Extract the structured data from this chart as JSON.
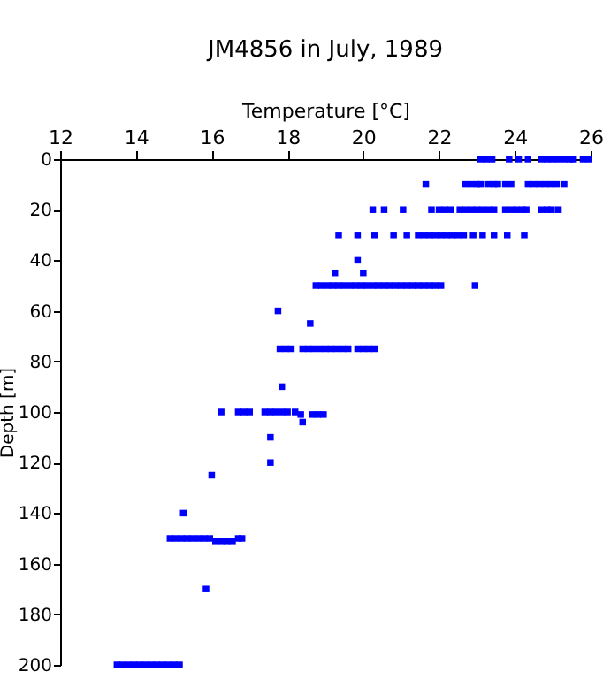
{
  "chart_data": {
    "type": "scatter",
    "title": "JM4856 in July, 1989",
    "xlabel": "Temperature [°C]",
    "ylabel": "Depth [m]",
    "x": [
      23.1,
      23.25,
      23.4,
      23.85,
      24.1,
      24.35,
      24.7,
      24.85,
      25.0,
      25.15,
      25.3,
      25.45,
      25.55,
      25.8,
      25.95,
      21.65,
      22.7,
      22.85,
      23.0,
      23.1,
      23.3,
      23.45,
      23.55,
      23.75,
      23.9,
      24.35,
      24.5,
      24.65,
      24.8,
      24.95,
      25.1,
      25.3,
      20.25,
      20.55,
      21.05,
      21.8,
      22.0,
      22.15,
      22.3,
      22.55,
      22.7,
      22.85,
      23.0,
      23.15,
      23.3,
      23.45,
      23.75,
      23.9,
      24.05,
      24.2,
      24.3,
      24.7,
      24.85,
      24.97,
      25.15,
      19.35,
      19.85,
      20.3,
      20.8,
      21.15,
      21.45,
      21.6,
      21.75,
      21.9,
      22.05,
      22.2,
      22.35,
      22.5,
      22.65,
      22.9,
      23.15,
      23.45,
      23.8,
      24.25,
      19.85,
      19.25,
      20.0,
      18.75,
      18.9,
      19.05,
      19.2,
      19.35,
      19.5,
      19.65,
      19.8,
      19.95,
      20.1,
      20.25,
      20.4,
      20.55,
      20.7,
      20.85,
      21.0,
      21.15,
      21.3,
      21.45,
      21.6,
      21.75,
      21.9,
      22.05,
      22.95,
      17.75,
      18.6,
      17.8,
      17.95,
      18.1,
      18.4,
      18.55,
      18.7,
      18.85,
      19.0,
      19.15,
      19.3,
      19.45,
      19.6,
      19.85,
      20.0,
      20.15,
      20.3,
      17.85,
      16.25,
      16.7,
      16.85,
      17.0,
      17.4,
      17.55,
      17.7,
      17.85,
      18.0,
      18.2,
      18.35,
      18.65,
      18.8,
      18.95,
      18.4,
      17.55,
      17.55,
      16.0,
      15.25,
      14.9,
      15.05,
      15.2,
      15.35,
      15.5,
      15.65,
      15.8,
      15.95,
      16.1,
      16.25,
      16.4,
      16.55,
      16.7,
      16.8,
      15.85,
      13.5,
      13.65,
      13.8,
      13.95,
      14.1,
      14.25,
      14.4,
      14.55,
      14.7,
      14.85,
      15.0,
      15.15
    ],
    "values": [
      0,
      0,
      0,
      0,
      0,
      0,
      0,
      0,
      0,
      0,
      0,
      0,
      0,
      0,
      0,
      10,
      10,
      10,
      10,
      10,
      10,
      10,
      10,
      10,
      10,
      10,
      10,
      10,
      10,
      10,
      10,
      10,
      20,
      20,
      20,
      20,
      20,
      20,
      20,
      20,
      20,
      20,
      20,
      20,
      20,
      20,
      20,
      20,
      20,
      20,
      20,
      20,
      20,
      20,
      20,
      30,
      30,
      30,
      30,
      30,
      30,
      30,
      30,
      30,
      30,
      30,
      30,
      30,
      30,
      30,
      30,
      30,
      30,
      30,
      40,
      45,
      45,
      50,
      50,
      50,
      50,
      50,
      50,
      50,
      50,
      50,
      50,
      50,
      50,
      50,
      50,
      50,
      50,
      50,
      50,
      50,
      50,
      50,
      50,
      50,
      50,
      60,
      65,
      75,
      75,
      75,
      75,
      75,
      75,
      75,
      75,
      75,
      75,
      75,
      75,
      75,
      75,
      75,
      75,
      90,
      100,
      100,
      100,
      100,
      100,
      100,
      100,
      100,
      100,
      100,
      101,
      101,
      101,
      101,
      104,
      110,
      120,
      125,
      140,
      150,
      150,
      150,
      150,
      150,
      150,
      150,
      150,
      151,
      151,
      151,
      151,
      150,
      150,
      170,
      200,
      200,
      200,
      200,
      200,
      200,
      200,
      200,
      200,
      200,
      200,
      200
    ],
    "color": "#0000ff",
    "marker": "square",
    "grid": false,
    "xlim": [
      12,
      26
    ],
    "xticks": [
      12,
      14,
      16,
      18,
      20,
      22,
      24,
      26
    ],
    "ylim": [
      200,
      0
    ],
    "yticks": [
      0,
      20,
      40,
      60,
      80,
      100,
      120,
      140,
      160,
      180,
      200
    ]
  }
}
